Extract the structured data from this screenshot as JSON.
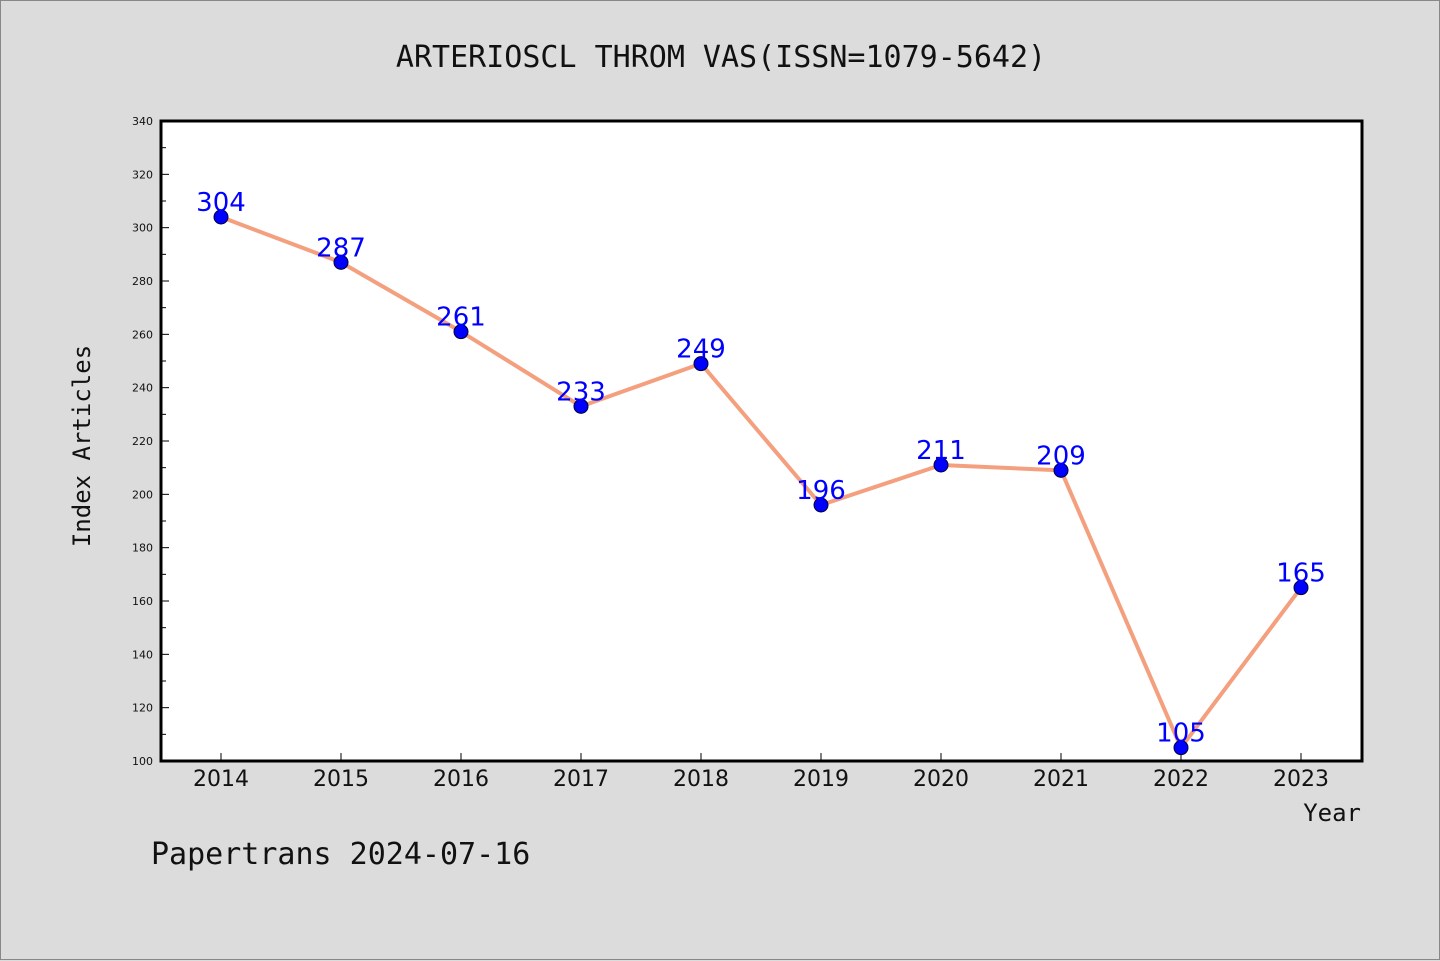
{
  "footer": "Papertrans 2024-07-16",
  "colors": {
    "background": "#dcdcdc",
    "plot_background": "#ffffff",
    "line": "#f4a07f",
    "marker": "#0000ff",
    "data_label": "#0000ff"
  },
  "chart_data": {
    "type": "line",
    "title": "ARTERIOSCL THROM VAS(ISSN=1079-5642)",
    "xlabel": "Year",
    "ylabel": "Index Articles",
    "x": [
      "2014",
      "2015",
      "2016",
      "2017",
      "2018",
      "2019",
      "2020",
      "2021",
      "2022",
      "2023"
    ],
    "series": [
      {
        "values": [
          304,
          287,
          261,
          233,
          249,
          196,
          211,
          209,
          105,
          165
        ]
      }
    ],
    "ylim": [
      100,
      340
    ],
    "yticks": [
      "100",
      "120",
      "140",
      "160",
      "180",
      "200",
      "220",
      "240",
      "260",
      "280",
      "300",
      "320",
      "340"
    ],
    "data_labels": [
      "304",
      "287",
      "261",
      "233",
      "249",
      "196",
      "211",
      "209",
      "105",
      "165"
    ],
    "grid": false,
    "markers": "circle"
  }
}
